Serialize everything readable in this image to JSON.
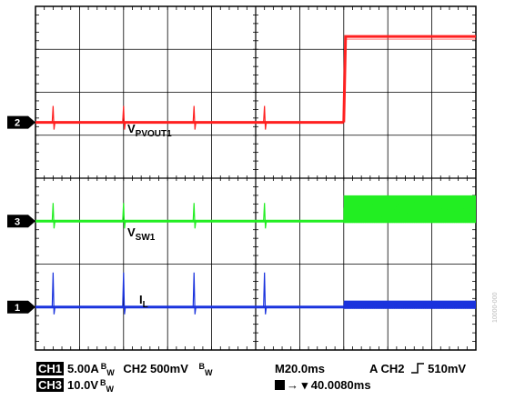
{
  "chart_data": {
    "type": "line",
    "grid": true,
    "x_divisions": 10,
    "y_divisions": 8,
    "time_per_div": "M20.0ms",
    "trigger_position": "40.0080ms",
    "series": [
      {
        "channel": "2",
        "name": "VPVOUT1",
        "name_main": "V",
        "name_sub": "PVOUT1",
        "color": "#ff2020",
        "baseline_div": 2.7,
        "step_to_div": 0.7,
        "step_at_div": 7.0,
        "spikes_div": [
          0.4,
          2.0,
          3.6,
          5.2
        ],
        "noise_after_step": false
      },
      {
        "channel": "3",
        "name": "VSW1",
        "name_main": "V",
        "name_sub": "SW1",
        "color": "#22ee22",
        "baseline_div": 5.0,
        "burst_top_div": 4.4,
        "burst_start_div": 7.0,
        "spikes_div": [
          0.4,
          2.0,
          3.6,
          5.2
        ],
        "noise_after_step": true
      },
      {
        "channel": "1",
        "name": "IL",
        "name_main": "I",
        "name_sub": "L",
        "color": "#1a33dd",
        "baseline_div": 7.0,
        "burst_top_div": 6.85,
        "burst_start_div": 7.0,
        "spikes_div": [
          0.4,
          2.0,
          3.6,
          5.2
        ],
        "noise_after_step": true
      }
    ]
  },
  "markers": [
    {
      "label": "2",
      "div": 2.7
    },
    {
      "label": "3",
      "div": 5.0
    },
    {
      "label": "1",
      "div": 7.0
    }
  ],
  "footer": {
    "ch1_chip": "CH1",
    "ch1_scale": "5.00A",
    "ch1_bw": "W",
    "ch2_scale": "CH2 500mV",
    "ch2_bw": "W",
    "timebase": "M20.0ms",
    "trigger": "A  CH2",
    "trigger_level": "510mV",
    "ch3_chip": "CH3",
    "ch3_scale": "10.0V",
    "ch3_bw": "W",
    "trigger_pos_chip": "T",
    "trigger_pos": "40.0080ms",
    "bw_letter": "B"
  },
  "side_id": "10000-000"
}
